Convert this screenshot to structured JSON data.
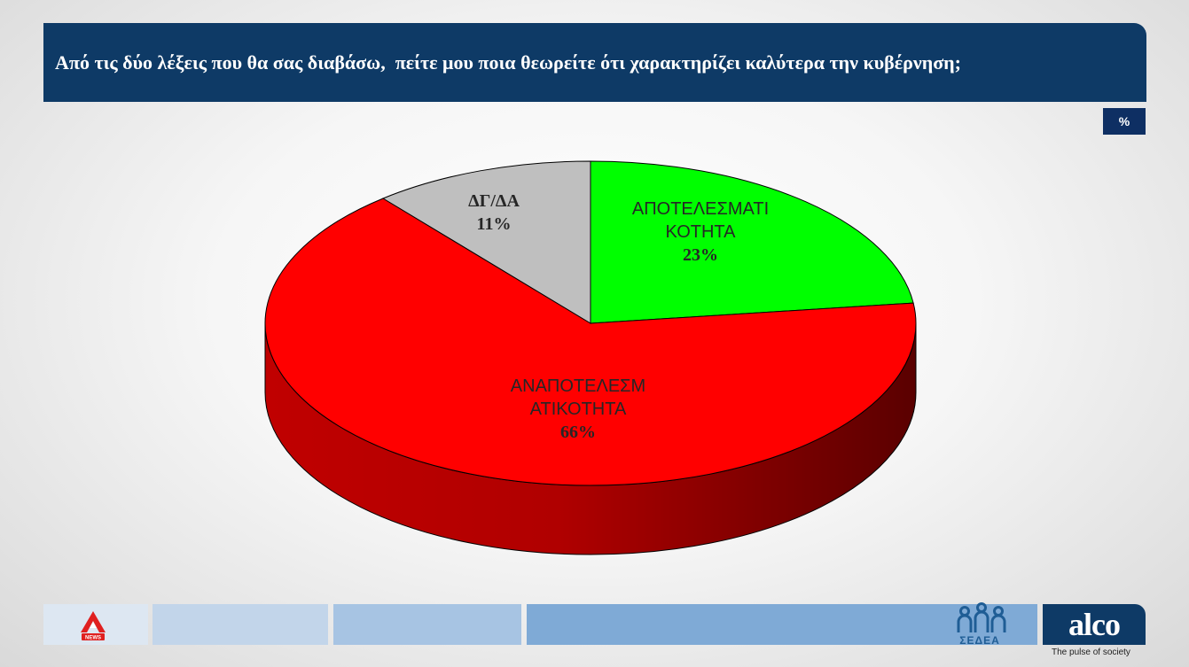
{
  "header": {
    "title": "Από τις δύο λέξεις που θα σας διαβάσω,  πείτε μου ποια θεωρείτε ότι χαρακτηρίζει καλύτερα την κυβέρνηση;",
    "unit_badge": "%"
  },
  "chart_data": {
    "type": "pie",
    "style": "3d",
    "title": "",
    "slices": [
      {
        "label_lines": [
          "ΑΠΟΤΕΛΕΣΜΑΤΙ",
          "ΚΟΤΗΤΑ"
        ],
        "value": 23,
        "value_label": "23%",
        "color": "#00ff00"
      },
      {
        "label_lines": [
          "ΑΝΑΠΟΤΕΛΕΣΜ",
          "ΑΤΙΚΟΤΗΤΑ"
        ],
        "value": 66,
        "value_label": "66%",
        "color": "#ff0000"
      },
      {
        "label_lines": [
          "ΔΓ/ΔΑ"
        ],
        "value": 11,
        "value_label": "11%",
        "color": "#bfbfbf"
      }
    ],
    "legend": "none"
  },
  "footer": {
    "alco_logo": "alco",
    "alco_tagline": "The pulse of society",
    "sedea_logo": "ΣΕΔΕΑ",
    "alpha_logo": "NEWS",
    "colors": {
      "navy": "#0e3a66",
      "band1": "#dde7f2",
      "band2": "#c2d5ea",
      "band3": "#a7c4e3",
      "band4": "#7faad6"
    }
  }
}
